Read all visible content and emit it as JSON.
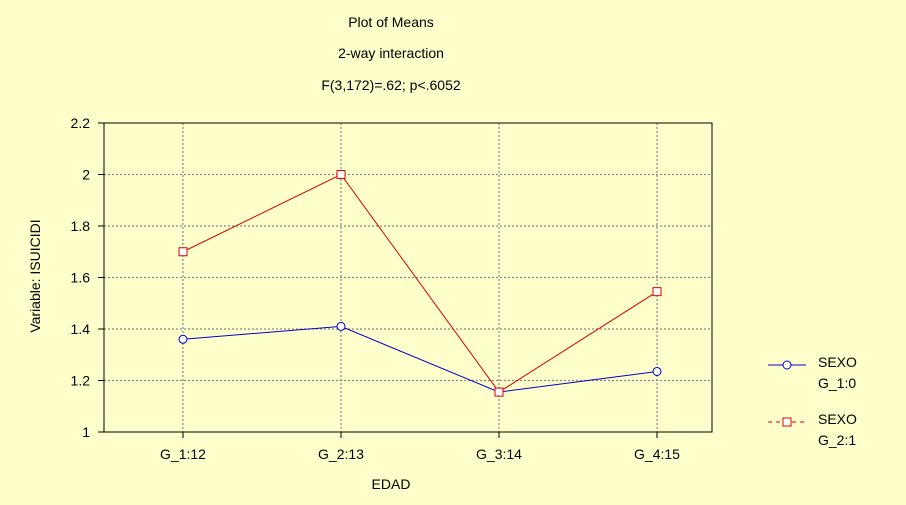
{
  "chart_data": {
    "type": "line",
    "title": "Plot of Means",
    "subtitle": "2-way interaction",
    "stats": "F(3,172)=.62; p<.6052",
    "xlabel": "EDAD",
    "ylabel": "Variable: ISUICIDI",
    "categories": [
      "G_1:12",
      "G_2:13",
      "G_3:14",
      "G_4:15"
    ],
    "ylim": [
      1,
      2.2
    ],
    "yticks": [
      "1",
      "1.2",
      "1.4",
      "1.6",
      "1.8",
      "2",
      "2.2"
    ],
    "grid": true,
    "legend_position": "right",
    "series": [
      {
        "name_line1": "SEXO",
        "name_line2": "G_1:0",
        "values": [
          1.36,
          1.41,
          1.155,
          1.235
        ],
        "color": "#0000cc",
        "marker": "circle",
        "dash": "solid"
      },
      {
        "name_line1": "SEXO",
        "name_line2": "G_2:1",
        "values": [
          1.7,
          2.0,
          1.155,
          1.545
        ],
        "color": "#dd0000",
        "marker": "square",
        "dash": "solid"
      }
    ]
  }
}
